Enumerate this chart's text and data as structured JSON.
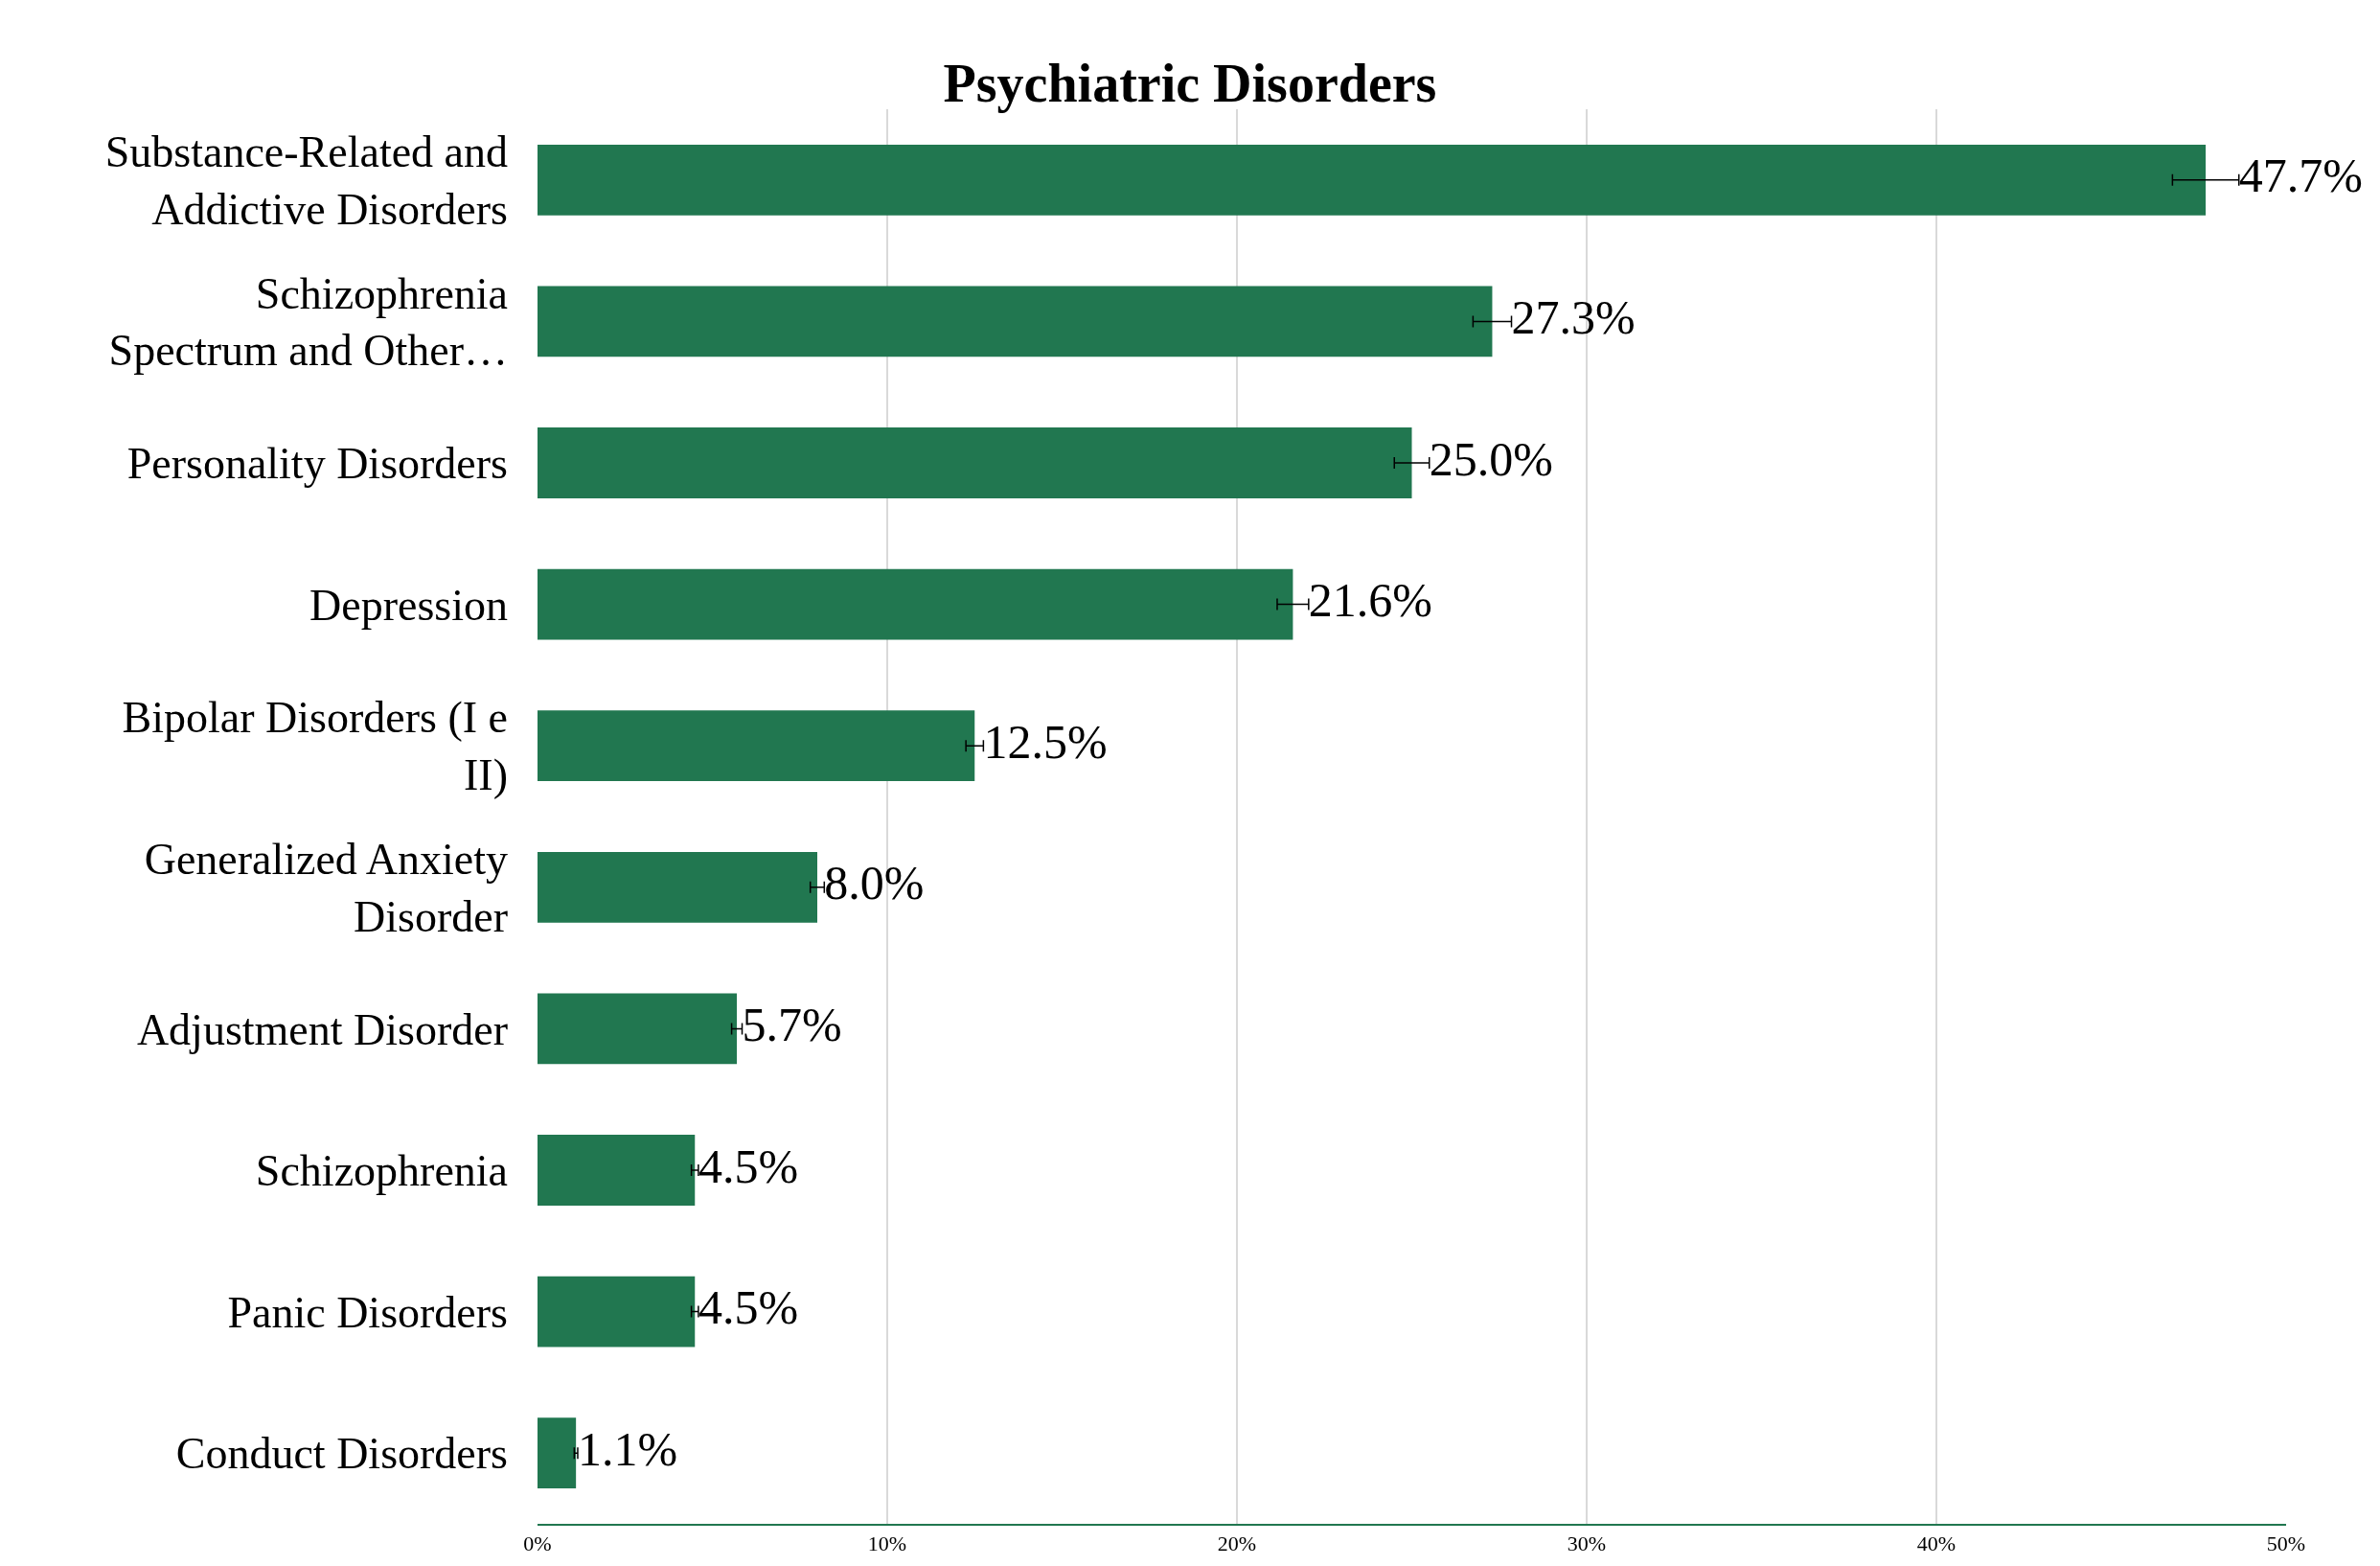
{
  "chart_data": {
    "type": "bar",
    "orientation": "horizontal",
    "title": "Psychiatric Disorders",
    "categories": [
      "Substance-Related and\nAddictive Disorders",
      "Schizophrenia\nSpectrum and Other…",
      "Personality Disorders",
      "Depression",
      "Bipolar Disorders (I e\nII)",
      "Generalized Anxiety\nDisorder",
      "Adjustment Disorder",
      "Schizophrenia",
      "Panic Disorders",
      "Conduct Disorders"
    ],
    "values": [
      47.7,
      27.3,
      25.0,
      21.6,
      12.5,
      8.0,
      5.7,
      4.5,
      4.5,
      1.1
    ],
    "errors": [
      0.95,
      0.55,
      0.5,
      0.45,
      0.25,
      0.2,
      0.15,
      0.1,
      0.1,
      0.05
    ],
    "value_labels": [
      "47.7%",
      "27.3%",
      "25.0%",
      "21.6%",
      "12.5%",
      "8.0%",
      "5.7%",
      "4.5%",
      "4.5%",
      "1.1%"
    ],
    "color": "#217750",
    "xlim": [
      0,
      50
    ],
    "xticks": [
      {
        "value": 0,
        "label": "0%"
      },
      {
        "value": 10,
        "label": "10%"
      },
      {
        "value": 20,
        "label": "20%"
      },
      {
        "value": 30,
        "label": "30%"
      },
      {
        "value": 40,
        "label": "40%"
      },
      {
        "value": 50,
        "label": "50%"
      }
    ],
    "grid": "x",
    "legend": false
  }
}
